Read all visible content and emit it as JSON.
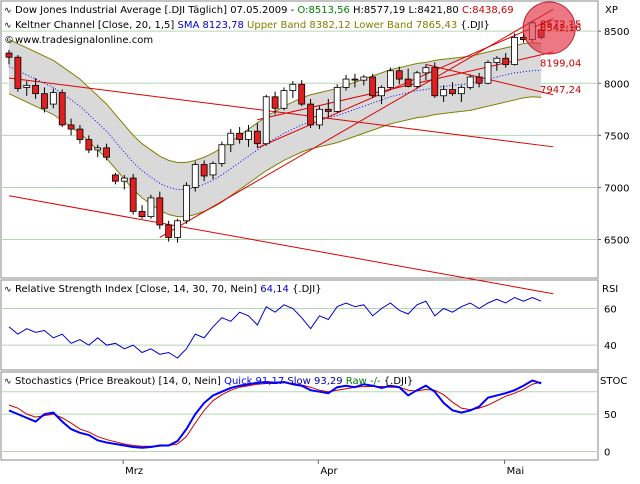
{
  "colors": {
    "candle_up": "#ffffff",
    "candle_down": "#e02020",
    "wick": "#000000",
    "band_fill": "#d9d9d9",
    "band_line": "#808000",
    "sma": "#0000ff",
    "trendline": "#e00000",
    "rsi": "#0000cc",
    "stoch_quick": "#0000ff",
    "stoch_slow": "#cc0000",
    "stoch_raw": "#008000",
    "grid": "#b4d8b4",
    "marker": "#e03040",
    "open_text": "#008000",
    "close_text": "#cc0000",
    "upper_text": "#808000",
    "sma_text": "#0000cc"
  },
  "header": {
    "title_prefix": "Dow Jones Industrial Average [.DJI Täglich] 07.05.2009 -",
    "open": "O:8513,56",
    "high": "H:8577,19",
    "low": "L:8421,80",
    "close": "C:8438,69",
    "keltner_label": "Keltner Channel [Close, 20, 1,5]",
    "sma_label": "SMA 8123,78",
    "band_label": "Upper Band 8382,12 Lower Band 7865,43",
    "keltner_suffix": "{.DJI}",
    "website": "www.tradesignalonline.com",
    "axis_unit": "XP"
  },
  "rsi": {
    "label": "Relative Strength Index [Close, 14, 30, 70, Nein]",
    "value": "64,14",
    "suffix": "{.DJI}",
    "axis_unit": "RSI"
  },
  "stoch": {
    "label": "Stochastics (Price Breakout) [14, 0, Nein]",
    "quick": "Quick 91,17",
    "slow": "Slow 93,29",
    "raw": "Raw -/-",
    "suffix": "{.DJI}",
    "axis_unit": "STOC"
  },
  "chart_data": [
    {
      "type": "candlestick",
      "title": "Dow Jones Industrial Average [.DJI Täglich]",
      "x_labels": [
        "Mrz",
        "Apr",
        "Mai"
      ],
      "ylim": [
        6150,
        8780
      ],
      "y_ticks": [
        6500,
        7000,
        7500,
        8000,
        8500
      ],
      "price_labels": [
        "8572,15",
        "8542,16",
        "8199,04",
        "7947,24"
      ],
      "candles": [
        {
          "o": 8290,
          "h": 8320,
          "l": 8180,
          "c": 8250
        },
        {
          "o": 8250,
          "h": 8270,
          "l": 7920,
          "c": 7950
        },
        {
          "o": 7960,
          "h": 8020,
          "l": 7880,
          "c": 7980
        },
        {
          "o": 7980,
          "h": 8050,
          "l": 7850,
          "c": 7900
        },
        {
          "o": 7900,
          "h": 7960,
          "l": 7720,
          "c": 7760
        },
        {
          "o": 7800,
          "h": 7950,
          "l": 7760,
          "c": 7910
        },
        {
          "o": 7910,
          "h": 7940,
          "l": 7580,
          "c": 7600
        },
        {
          "o": 7600,
          "h": 7660,
          "l": 7500,
          "c": 7560
        },
        {
          "o": 7560,
          "h": 7600,
          "l": 7420,
          "c": 7460
        },
        {
          "o": 7460,
          "h": 7500,
          "l": 7330,
          "c": 7360
        },
        {
          "o": 7360,
          "h": 7410,
          "l": 7290,
          "c": 7380
        },
        {
          "o": 7380,
          "h": 7420,
          "l": 7260,
          "c": 7290
        },
        {
          "o": 7120,
          "h": 7140,
          "l": 7030,
          "c": 7060
        },
        {
          "o": 7060,
          "h": 7120,
          "l": 6980,
          "c": 7090
        },
        {
          "o": 7090,
          "h": 7130,
          "l": 6740,
          "c": 6770
        },
        {
          "o": 6770,
          "h": 6830,
          "l": 6700,
          "c": 6720
        },
        {
          "o": 6720,
          "h": 6930,
          "l": 6700,
          "c": 6900
        },
        {
          "o": 6900,
          "h": 6960,
          "l": 6600,
          "c": 6640
        },
        {
          "o": 6640,
          "h": 6680,
          "l": 6480,
          "c": 6520
        },
        {
          "o": 6520,
          "h": 6700,
          "l": 6470,
          "c": 6680
        },
        {
          "o": 6680,
          "h": 7050,
          "l": 6650,
          "c": 7020
        },
        {
          "o": 7000,
          "h": 7250,
          "l": 6960,
          "c": 7220
        },
        {
          "o": 7220,
          "h": 7260,
          "l": 7060,
          "c": 7110
        },
        {
          "o": 7120,
          "h": 7250,
          "l": 7080,
          "c": 7230
        },
        {
          "o": 7230,
          "h": 7440,
          "l": 7200,
          "c": 7410
        },
        {
          "o": 7410,
          "h": 7560,
          "l": 7340,
          "c": 7520
        },
        {
          "o": 7520,
          "h": 7580,
          "l": 7420,
          "c": 7460
        },
        {
          "o": 7460,
          "h": 7600,
          "l": 7390,
          "c": 7540
        },
        {
          "o": 7540,
          "h": 7620,
          "l": 7380,
          "c": 7420
        },
        {
          "o": 7420,
          "h": 7890,
          "l": 7400,
          "c": 7870
        },
        {
          "o": 7870,
          "h": 7920,
          "l": 7700,
          "c": 7760
        },
        {
          "o": 7760,
          "h": 7960,
          "l": 7740,
          "c": 7930
        },
        {
          "o": 7930,
          "h": 8020,
          "l": 7860,
          "c": 7990
        },
        {
          "o": 7990,
          "h": 8030,
          "l": 7780,
          "c": 7800
        },
        {
          "o": 7800,
          "h": 7850,
          "l": 7570,
          "c": 7600
        },
        {
          "o": 7600,
          "h": 7780,
          "l": 7560,
          "c": 7750
        },
        {
          "o": 7750,
          "h": 7850,
          "l": 7680,
          "c": 7730
        },
        {
          "o": 7730,
          "h": 7990,
          "l": 7720,
          "c": 7960
        },
        {
          "o": 7960,
          "h": 8080,
          "l": 7930,
          "c": 8040
        },
        {
          "o": 8040,
          "h": 8090,
          "l": 7960,
          "c": 8030
        },
        {
          "o": 8030,
          "h": 8080,
          "l": 7980,
          "c": 8060
        },
        {
          "o": 8060,
          "h": 8090,
          "l": 7860,
          "c": 7880
        },
        {
          "o": 7880,
          "h": 7980,
          "l": 7800,
          "c": 7960
        },
        {
          "o": 7960,
          "h": 8150,
          "l": 7940,
          "c": 8120
        },
        {
          "o": 8120,
          "h": 8160,
          "l": 7990,
          "c": 8040
        },
        {
          "o": 8040,
          "h": 8140,
          "l": 7960,
          "c": 7970
        },
        {
          "o": 7970,
          "h": 8120,
          "l": 7950,
          "c": 8100
        },
        {
          "o": 8100,
          "h": 8180,
          "l": 8030,
          "c": 8150
        },
        {
          "o": 8150,
          "h": 8200,
          "l": 7860,
          "c": 7880
        },
        {
          "o": 7880,
          "h": 7980,
          "l": 7820,
          "c": 7940
        },
        {
          "o": 7940,
          "h": 8010,
          "l": 7880,
          "c": 7900
        },
        {
          "o": 7900,
          "h": 7980,
          "l": 7820,
          "c": 7960
        },
        {
          "o": 7960,
          "h": 8080,
          "l": 7940,
          "c": 8060
        },
        {
          "o": 8060,
          "h": 8100,
          "l": 7960,
          "c": 8000
        },
        {
          "o": 8000,
          "h": 8220,
          "l": 7990,
          "c": 8200
        },
        {
          "o": 8200,
          "h": 8260,
          "l": 8120,
          "c": 8240
        },
        {
          "o": 8240,
          "h": 8290,
          "l": 8150,
          "c": 8180
        },
        {
          "o": 8180,
          "h": 8480,
          "l": 8170,
          "c": 8440
        },
        {
          "o": 8440,
          "h": 8480,
          "l": 8390,
          "c": 8420
        },
        {
          "o": 8420,
          "h": 8600,
          "l": 8400,
          "c": 8580
        },
        {
          "o": 8513,
          "h": 8577,
          "l": 8422,
          "c": 8439
        }
      ],
      "keltner_upper": [
        8420,
        8380,
        8340,
        8300,
        8260,
        8220,
        8160,
        8100,
        8040,
        7960,
        7880,
        7800,
        7700,
        7600,
        7500,
        7420,
        7360,
        7300,
        7260,
        7240,
        7240,
        7260,
        7290,
        7330,
        7380,
        7440,
        7500,
        7560,
        7620,
        7680,
        7730,
        7780,
        7820,
        7860,
        7890,
        7910,
        7930,
        7950,
        7980,
        8010,
        8040,
        8070,
        8100,
        8130,
        8150,
        8170,
        8190,
        8200,
        8220,
        8230,
        8240,
        8250,
        8260,
        8280,
        8300,
        8320,
        8340,
        8360,
        8380,
        8390,
        8382
      ],
      "keltner_lower": [
        7900,
        7860,
        7820,
        7780,
        7740,
        7700,
        7640,
        7580,
        7520,
        7440,
        7360,
        7280,
        7180,
        7080,
        6980,
        6900,
        6840,
        6780,
        6740,
        6720,
        6720,
        6740,
        6770,
        6810,
        6860,
        6920,
        6980,
        7040,
        7100,
        7160,
        7210,
        7260,
        7300,
        7340,
        7370,
        7390,
        7410,
        7430,
        7460,
        7490,
        7520,
        7550,
        7580,
        7610,
        7630,
        7650,
        7670,
        7680,
        7700,
        7710,
        7720,
        7730,
        7740,
        7760,
        7780,
        7800,
        7820,
        7840,
        7860,
        7870,
        7865
      ],
      "sma": [
        8160,
        8120,
        8080,
        8040,
        8000,
        7960,
        7900,
        7840,
        7780,
        7700,
        7620,
        7540,
        7440,
        7340,
        7240,
        7160,
        7100,
        7040,
        7000,
        6980,
        6980,
        7000,
        7030,
        7070,
        7120,
        7180,
        7240,
        7300,
        7360,
        7420,
        7470,
        7520,
        7560,
        7600,
        7630,
        7650,
        7670,
        7690,
        7720,
        7750,
        7780,
        7810,
        7840,
        7870,
        7890,
        7910,
        7930,
        7940,
        7960,
        7970,
        7980,
        7990,
        8000,
        8020,
        8040,
        8060,
        8080,
        8100,
        8110,
        8120,
        8124
      ],
      "trendlines": [
        {
          "x1": 0,
          "y1": 8050,
          "x2": 60,
          "y2": 7390
        },
        {
          "x1": 0,
          "y1": 6920,
          "x2": 60,
          "y2": 5980
        },
        {
          "x1": 17,
          "y1": 6520,
          "x2": 60,
          "y2": 8710
        },
        {
          "x1": 28,
          "y1": 7380,
          "x2": 60,
          "y2": 8620
        },
        {
          "x1": 28,
          "y1": 7650,
          "x2": 60,
          "y2": 8300
        },
        {
          "x1": 47,
          "y1": 8180,
          "x2": 60,
          "y2": 7890
        }
      ]
    },
    {
      "type": "line",
      "title": "Relative Strength Index [Close, 14, 30, 70, Nein]",
      "y_ticks": [
        40,
        60
      ],
      "ylim": [
        27,
        75
      ],
      "series": [
        {
          "name": "RSI",
          "values": [
            50,
            46,
            49,
            47,
            48,
            44,
            46,
            41,
            43,
            40,
            44,
            40,
            41,
            38,
            40,
            36,
            38,
            35,
            36,
            33,
            38,
            46,
            44,
            50,
            55,
            53,
            58,
            56,
            51,
            61,
            58,
            62,
            60,
            55,
            49,
            56,
            54,
            61,
            63,
            61,
            62,
            56,
            60,
            63,
            59,
            57,
            62,
            64,
            56,
            60,
            58,
            61,
            63,
            60,
            63,
            65,
            63,
            66,
            64,
            66,
            64
          ]
        }
      ]
    },
    {
      "type": "line",
      "title": "Stochastics (Price Breakout) [14, 0, Nein]",
      "y_ticks": [
        0,
        50
      ],
      "ylim": [
        -10,
        105
      ],
      "series": [
        {
          "name": "Quick",
          "values": [
            55,
            50,
            45,
            40,
            50,
            52,
            40,
            30,
            25,
            22,
            15,
            12,
            10,
            8,
            6,
            5,
            6,
            8,
            8,
            14,
            30,
            50,
            65,
            75,
            80,
            85,
            88,
            90,
            92,
            93,
            92,
            93,
            90,
            88,
            82,
            80,
            78,
            86,
            88,
            86,
            90,
            88,
            85,
            88,
            86,
            75,
            82,
            88,
            80,
            65,
            55,
            52,
            55,
            60,
            72,
            75,
            78,
            82,
            88,
            95,
            91
          ]
        },
        {
          "name": "Slow",
          "values": [
            62,
            58,
            50,
            46,
            48,
            50,
            45,
            38,
            30,
            26,
            20,
            16,
            13,
            10,
            8,
            7,
            7,
            7,
            8,
            10,
            20,
            38,
            55,
            68,
            76,
            82,
            86,
            88,
            90,
            91,
            91,
            92,
            91,
            89,
            86,
            82,
            80,
            82,
            84,
            86,
            87,
            87,
            87,
            86,
            86,
            82,
            81,
            83,
            82,
            76,
            66,
            58,
            56,
            58,
            62,
            68,
            74,
            78,
            83,
            90,
            93
          ]
        }
      ]
    }
  ]
}
